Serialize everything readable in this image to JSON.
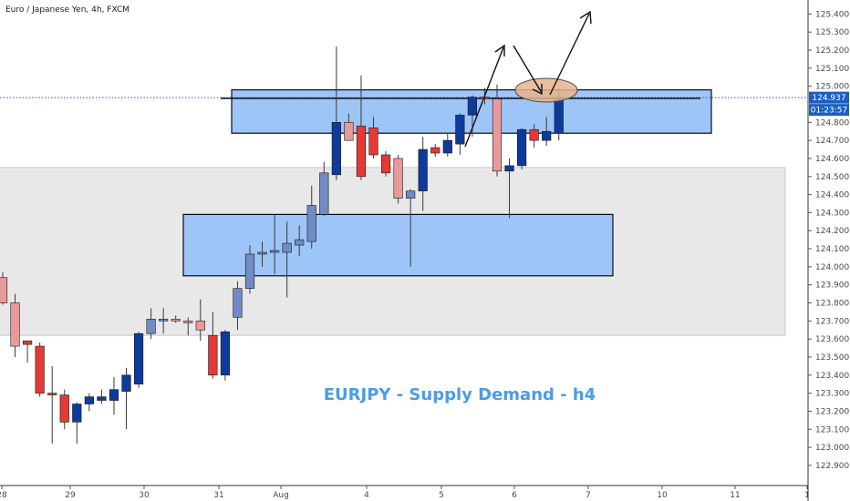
{
  "chart_data": {
    "type": "candlestick",
    "title": "Euro / Japanese Yen, 4h, FXCM",
    "annotation": "EURJPY - Supply Demand - h4",
    "last_price_label": "124.937",
    "countdown_label": "01:23:57",
    "ylim": [
      122.8,
      125.5
    ],
    "y_ticks": [
      "125.400",
      "125.300",
      "125.200",
      "125.100",
      "125.000",
      "124.800",
      "124.700",
      "124.600",
      "124.500",
      "124.400",
      "124.300",
      "124.200",
      "124.100",
      "124.000",
      "123.900",
      "123.800",
      "123.700",
      "123.600",
      "123.500",
      "123.400",
      "123.300",
      "123.200",
      "123.100",
      "123.000",
      "122.900"
    ],
    "y_tick_values": [
      125.4,
      125.3,
      125.2,
      125.1,
      125.0,
      124.8,
      124.7,
      124.6,
      124.5,
      124.4,
      124.3,
      124.2,
      124.1,
      124.0,
      123.9,
      123.8,
      123.7,
      123.6,
      123.5,
      123.4,
      123.3,
      123.2,
      123.1,
      123.0,
      122.9
    ],
    "x_labels": [
      "28",
      "29",
      "30",
      "31",
      "Aug",
      "4",
      "5",
      "6",
      "7",
      "10",
      "11",
      "1"
    ],
    "colors": {
      "up": "#0d3b9b",
      "down": "#e53935",
      "up_faded": "#6f8cc4",
      "down_faded": "#e89a9a",
      "zone_fill": "#9ec5f7",
      "zone_stroke": "#0a0a1a",
      "gray_zone": "#e8e8e8",
      "annotation": "#4a9ce8",
      "price_label_bg": "#1b5fbf",
      "ellipse": "#e8b48c"
    },
    "zones": {
      "supply": {
        "y_low": 124.74,
        "y_high": 124.98
      },
      "demand": {
        "y_low": 123.95,
        "y_high": 124.29
      },
      "gray": {
        "y_low": 123.62,
        "y_high": 124.55
      }
    },
    "candles": [
      {
        "o": 123.94,
        "h": 123.97,
        "l": 123.79,
        "c": 123.8,
        "f": true
      },
      {
        "o": 123.8,
        "h": 123.85,
        "l": 123.5,
        "c": 123.56,
        "f": true
      },
      {
        "o": 123.59,
        "h": 123.59,
        "l": 123.47,
        "c": 123.57,
        "f": false
      },
      {
        "o": 123.56,
        "h": 123.58,
        "l": 123.28,
        "c": 123.3,
        "f": false
      },
      {
        "o": 123.3,
        "h": 123.45,
        "l": 123.02,
        "c": 123.29,
        "f": false
      },
      {
        "o": 123.29,
        "h": 123.32,
        "l": 123.1,
        "c": 123.14,
        "f": false
      },
      {
        "o": 123.14,
        "h": 123.25,
        "l": 123.02,
        "c": 123.24,
        "f": false
      },
      {
        "o": 123.24,
        "h": 123.3,
        "l": 123.2,
        "c": 123.28,
        "f": false
      },
      {
        "o": 123.26,
        "h": 123.32,
        "l": 123.24,
        "c": 123.28,
        "f": false
      },
      {
        "o": 123.26,
        "h": 123.39,
        "l": 123.18,
        "c": 123.32,
        "f": false
      },
      {
        "o": 123.31,
        "h": 123.44,
        "l": 123.1,
        "c": 123.4,
        "f": false
      },
      {
        "o": 123.35,
        "h": 123.64,
        "l": 123.33,
        "c": 123.63,
        "f": false
      },
      {
        "o": 123.63,
        "h": 123.77,
        "l": 123.6,
        "c": 123.71,
        "f": true
      },
      {
        "o": 123.7,
        "h": 123.77,
        "l": 123.63,
        "c": 123.71,
        "f": true
      },
      {
        "o": 123.71,
        "h": 123.73,
        "l": 123.69,
        "c": 123.7,
        "f": true
      },
      {
        "o": 123.7,
        "h": 123.72,
        "l": 123.62,
        "c": 123.69,
        "f": true
      },
      {
        "o": 123.7,
        "h": 123.82,
        "l": 123.59,
        "c": 123.65,
        "f": true
      },
      {
        "o": 123.62,
        "h": 123.75,
        "l": 123.38,
        "c": 123.4,
        "f": false
      },
      {
        "o": 123.4,
        "h": 123.65,
        "l": 123.37,
        "c": 123.64,
        "f": false
      },
      {
        "o": 123.72,
        "h": 123.92,
        "l": 123.65,
        "c": 123.88,
        "f": true
      },
      {
        "o": 123.88,
        "h": 124.12,
        "l": 123.85,
        "c": 124.07,
        "f": true
      },
      {
        "o": 124.07,
        "h": 124.14,
        "l": 124.0,
        "c": 124.08,
        "f": true
      },
      {
        "o": 124.08,
        "h": 124.29,
        "l": 123.96,
        "c": 124.09,
        "f": true
      },
      {
        "o": 124.08,
        "h": 124.25,
        "l": 123.83,
        "c": 124.13,
        "f": true
      },
      {
        "o": 124.12,
        "h": 124.23,
        "l": 124.06,
        "c": 124.15,
        "f": true
      },
      {
        "o": 124.14,
        "h": 124.45,
        "l": 124.1,
        "c": 124.34,
        "f": true
      },
      {
        "o": 124.29,
        "h": 124.58,
        "l": 124.28,
        "c": 124.52,
        "f": true
      },
      {
        "o": 124.51,
        "h": 125.22,
        "l": 124.48,
        "c": 124.8,
        "f": false
      },
      {
        "o": 124.8,
        "h": 124.85,
        "l": 124.7,
        "c": 124.7,
        "f": true
      },
      {
        "o": 124.78,
        "h": 125.06,
        "l": 124.48,
        "c": 124.5,
        "f": false
      },
      {
        "o": 124.77,
        "h": 124.83,
        "l": 124.6,
        "c": 124.62,
        "f": false
      },
      {
        "o": 124.62,
        "h": 124.64,
        "l": 124.5,
        "c": 124.52,
        "f": false
      },
      {
        "o": 124.6,
        "h": 124.62,
        "l": 124.35,
        "c": 124.38,
        "f": true
      },
      {
        "o": 124.38,
        "h": 124.43,
        "l": 124.0,
        "c": 124.42,
        "f": true
      },
      {
        "o": 124.42,
        "h": 124.72,
        "l": 124.31,
        "c": 124.65,
        "f": false
      },
      {
        "o": 124.66,
        "h": 124.68,
        "l": 124.61,
        "c": 124.63,
        "f": false
      },
      {
        "o": 124.63,
        "h": 124.74,
        "l": 124.61,
        "c": 124.7,
        "f": false
      },
      {
        "o": 124.68,
        "h": 124.85,
        "l": 124.62,
        "c": 124.84,
        "f": false
      },
      {
        "o": 124.84,
        "h": 124.95,
        "l": 124.72,
        "c": 124.94,
        "f": false
      },
      {
        "o": 124.94,
        "h": 124.99,
        "l": 124.9,
        "c": 124.93,
        "f": false
      },
      {
        "o": 124.93,
        "h": 125.01,
        "l": 124.5,
        "c": 124.53,
        "f": true
      },
      {
        "o": 124.53,
        "h": 124.6,
        "l": 124.27,
        "c": 124.56,
        "f": false
      },
      {
        "o": 124.56,
        "h": 124.77,
        "l": 124.54,
        "c": 124.76,
        "f": false
      },
      {
        "o": 124.76,
        "h": 124.79,
        "l": 124.66,
        "c": 124.7,
        "f": false
      },
      {
        "o": 124.7,
        "h": 124.83,
        "l": 124.67,
        "c": 124.75,
        "f": false
      },
      {
        "o": 124.74,
        "h": 124.99,
        "l": 124.7,
        "c": 124.94,
        "f": false
      }
    ]
  }
}
